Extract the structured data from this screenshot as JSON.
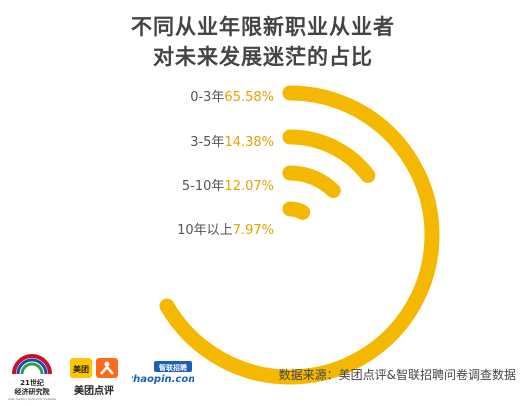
{
  "title": {
    "line1": "不同从业年限新职业从业者",
    "line2": "对未来发展迷茫的占比"
  },
  "colors": {
    "arc": "#F5B800",
    "category_text": "#555555",
    "value_text": "#E8A000",
    "title": "#444444"
  },
  "chart_data": {
    "type": "radial-arc",
    "title": "不同从业年限新职业从业者对未来发展迷茫的占比",
    "categories": [
      "0-3年",
      "3-5年",
      "5-10年",
      "10年以上"
    ],
    "values": [
      65.58,
      14.38,
      12.07,
      7.97
    ],
    "value_labels": [
      "65.58%",
      "14.38%",
      "12.07%",
      "7.97%"
    ],
    "unit": "%"
  },
  "source": "数据来源：美团点评&智联招聘问卷调查数据",
  "logos": {
    "logo21": {
      "number": "21世纪",
      "name": "经济研究院",
      "sub": "21st century economic institute"
    },
    "meituan": {
      "badge": "美团",
      "name": "美团点评"
    },
    "zhaopin": {
      "text": "zhaopin.com",
      "badge": "智联招聘"
    }
  }
}
